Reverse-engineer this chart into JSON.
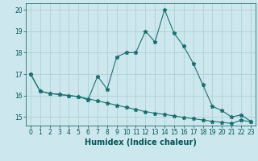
{
  "title": "",
  "xlabel": "Humidex (Indice chaleur)",
  "background_color": "#cce8ee",
  "grid_color": "#aacccc",
  "line_color": "#1a7070",
  "x_values": [
    0,
    1,
    2,
    3,
    4,
    5,
    6,
    7,
    8,
    9,
    10,
    11,
    12,
    13,
    14,
    15,
    16,
    17,
    18,
    19,
    20,
    21,
    22,
    23
  ],
  "line1_y": [
    17.0,
    16.2,
    16.1,
    16.05,
    16.0,
    15.95,
    15.8,
    16.9,
    16.3,
    17.8,
    18.0,
    18.0,
    19.0,
    18.5,
    20.0,
    18.9,
    18.3,
    17.5,
    16.5,
    15.5,
    15.3,
    15.0,
    15.1,
    14.8
  ],
  "line2_y": [
    17.0,
    16.2,
    16.1,
    16.05,
    16.0,
    15.95,
    15.85,
    15.75,
    15.65,
    15.55,
    15.45,
    15.35,
    15.25,
    15.18,
    15.12,
    15.05,
    14.98,
    14.92,
    14.86,
    14.8,
    14.75,
    14.7,
    14.85,
    14.78
  ],
  "ylim": [
    14.6,
    20.3
  ],
  "xlim": [
    -0.5,
    23.5
  ],
  "yticks": [
    15,
    16,
    17,
    18,
    19,
    20
  ],
  "xticks": [
    0,
    1,
    2,
    3,
    4,
    5,
    6,
    7,
    8,
    9,
    10,
    11,
    12,
    13,
    14,
    15,
    16,
    17,
    18,
    19,
    20,
    21,
    22,
    23
  ],
  "xtick_labels": [
    "0",
    "1",
    "2",
    "3",
    "4",
    "5",
    "6",
    "7",
    "8",
    "9",
    "10",
    "11",
    "12",
    "13",
    "14",
    "15",
    "16",
    "17",
    "18",
    "19",
    "20",
    "21",
    "22",
    "23"
  ],
  "marker": "*",
  "markersize": 3.5,
  "linewidth": 0.8,
  "font_color": "#005555",
  "tick_fontsize": 5.5,
  "xlabel_fontsize": 7
}
